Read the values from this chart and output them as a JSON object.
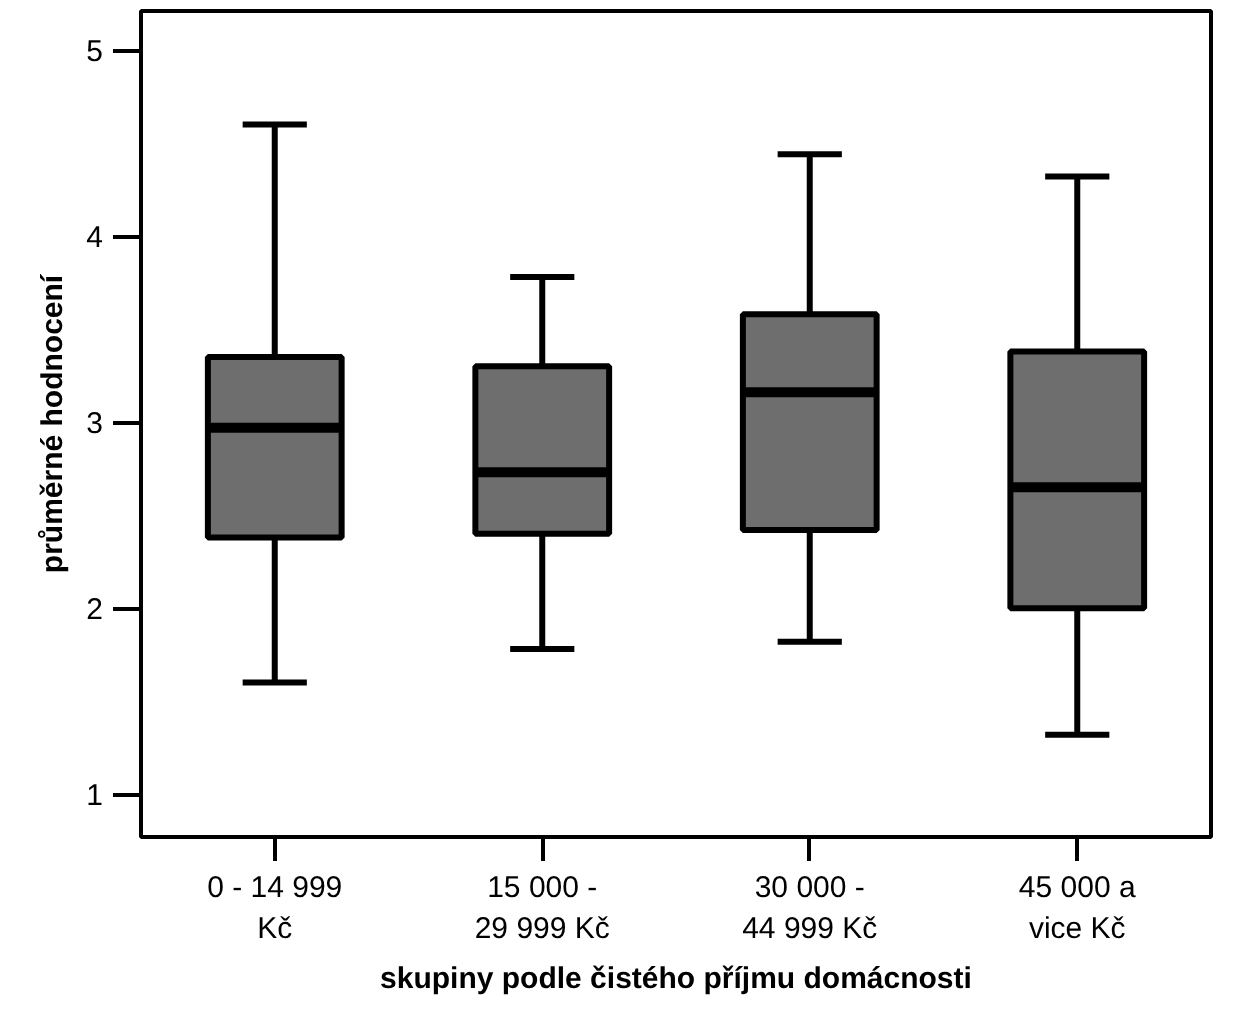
{
  "chart_data": {
    "type": "box",
    "xlabel": "skupiny podle čistého příjmu domácnosti",
    "ylabel": "průměrné hodnocení",
    "categories": [
      "0 - 14 999\nKč",
      "15 000 -\n29 999 Kč",
      "30 000 -\n44 999 Kč",
      "45 000 a\nvice Kč"
    ],
    "boxes": [
      {
        "low": 1.6,
        "q1": 2.38,
        "median": 2.97,
        "q3": 3.35,
        "high": 4.6
      },
      {
        "low": 1.78,
        "q1": 2.4,
        "median": 2.73,
        "q3": 3.3,
        "high": 3.78
      },
      {
        "low": 1.82,
        "q1": 2.42,
        "median": 3.16,
        "q3": 3.58,
        "high": 4.44
      },
      {
        "low": 1.32,
        "q1": 2.0,
        "median": 2.65,
        "q3": 3.38,
        "high": 4.32
      }
    ],
    "color": "#6e6e6e",
    "ylim": [
      0.77,
      5.21
    ],
    "yticks": [
      1,
      2,
      3,
      4,
      5
    ],
    "grid": false
  }
}
